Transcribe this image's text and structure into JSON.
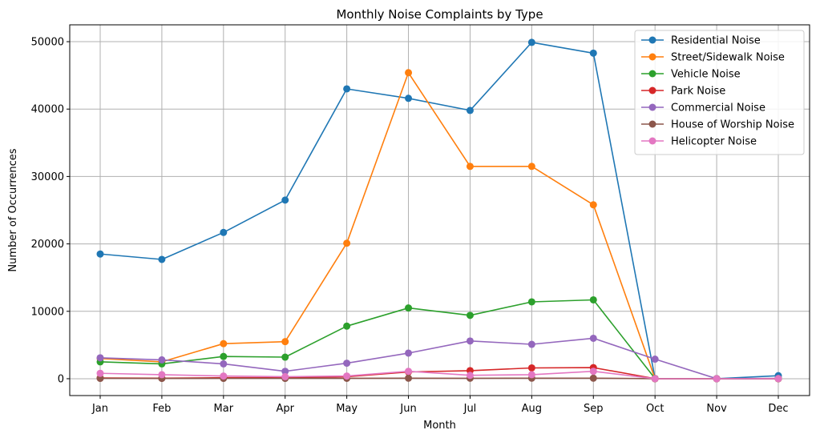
{
  "chart_data": {
    "type": "line",
    "title": "Monthly Noise Complaints by Type",
    "xlabel": "Month",
    "ylabel": "Number of Occurrences",
    "categories": [
      "Jan",
      "Feb",
      "Mar",
      "Apr",
      "May",
      "Jun",
      "Jul",
      "Aug",
      "Sep",
      "Oct",
      "Nov",
      "Dec"
    ],
    "yticks": [
      0,
      10000,
      20000,
      30000,
      40000,
      50000
    ],
    "ylim": [
      -2500,
      52500
    ],
    "grid": true,
    "legend_position": "top-right",
    "series": [
      {
        "name": "Residential Noise",
        "color": "#1f77b4",
        "values": [
          18500,
          17700,
          21700,
          26500,
          43000,
          41600,
          39800,
          49900,
          48300,
          30,
          10,
          450
        ]
      },
      {
        "name": "Street/Sidewalk Noise",
        "color": "#ff7f0e",
        "values": [
          3000,
          2500,
          5200,
          5500,
          20100,
          45400,
          31500,
          31500,
          25800,
          20,
          5,
          10
        ]
      },
      {
        "name": "Vehicle Noise",
        "color": "#2ca02c",
        "values": [
          2500,
          2200,
          3300,
          3200,
          7800,
          10500,
          9400,
          11400,
          11700,
          20,
          5,
          10
        ]
      },
      {
        "name": "Park Noise",
        "color": "#d62728",
        "values": [
          100,
          80,
          150,
          150,
          300,
          1000,
          1200,
          1600,
          1650,
          5,
          0,
          5
        ]
      },
      {
        "name": "Commercial Noise",
        "color": "#9467bd",
        "values": [
          3100,
          2800,
          2200,
          1100,
          2300,
          3800,
          5600,
          5100,
          6000,
          2900,
          10,
          50
        ]
      },
      {
        "name": "House of Worship Noise",
        "color": "#8c564b",
        "values": [
          50,
          40,
          50,
          50,
          60,
          80,
          70,
          80,
          80,
          5,
          0,
          5
        ]
      },
      {
        "name": "Helicopter Noise",
        "color": "#e377c2",
        "values": [
          800,
          600,
          400,
          300,
          400,
          1100,
          500,
          600,
          1100,
          10,
          0,
          10
        ]
      }
    ]
  }
}
